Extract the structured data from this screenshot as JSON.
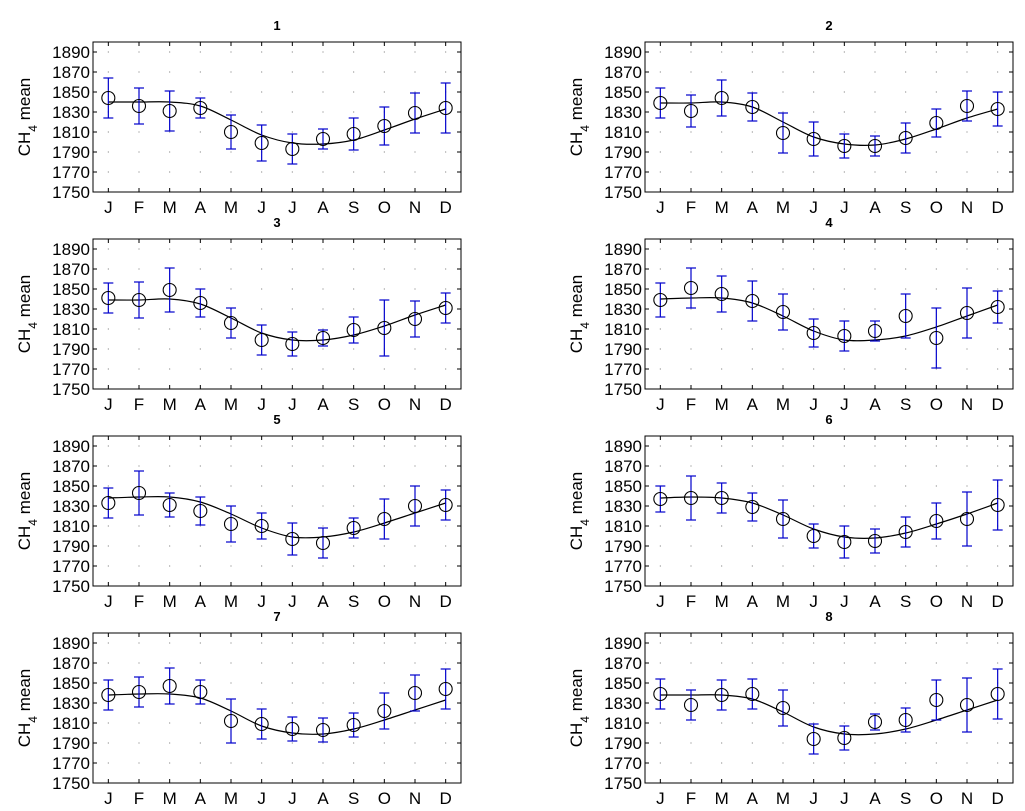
{
  "figure": {
    "ylabel_main": "CH",
    "ylabel_sub": "4",
    "ylabel_suffix": " mean"
  },
  "chart_data": [
    {
      "type": "scatter",
      "title": "1",
      "ylabel": "CH4 mean",
      "ylim": [
        1750,
        1900
      ],
      "yticks": [
        1750,
        1770,
        1790,
        1810,
        1830,
        1850,
        1870,
        1890
      ],
      "categories": [
        "J",
        "F",
        "M",
        "A",
        "M",
        "J",
        "J",
        "A",
        "S",
        "O",
        "N",
        "D"
      ],
      "series": [
        {
          "values": [
            1844,
            1836,
            1831,
            1834,
            1810,
            1799,
            1793,
            1803,
            1808,
            1816,
            1829,
            1834
          ]
        }
      ],
      "err": [
        20,
        18,
        20,
        10,
        17,
        18,
        15,
        10,
        16,
        19,
        20,
        25
      ],
      "fit": [
        1840,
        1840,
        1840,
        1836,
        1822,
        1807,
        1799,
        1798,
        1802,
        1812,
        1823,
        1833
      ]
    },
    {
      "type": "scatter",
      "title": "2",
      "ylabel": "CH4 mean",
      "ylim": [
        1750,
        1900
      ],
      "yticks": [
        1750,
        1770,
        1790,
        1810,
        1830,
        1850,
        1870,
        1890
      ],
      "categories": [
        "J",
        "F",
        "M",
        "A",
        "M",
        "J",
        "J",
        "A",
        "S",
        "O",
        "N",
        "D"
      ],
      "series": [
        {
          "values": [
            1839,
            1831,
            1844,
            1835,
            1809,
            1803,
            1796,
            1796,
            1804,
            1819,
            1836,
            1833
          ]
        }
      ],
      "err": [
        15,
        16,
        18,
        14,
        20,
        17,
        12,
        10,
        15,
        14,
        15,
        17
      ],
      "fit": [
        1839,
        1839,
        1840,
        1835,
        1820,
        1805,
        1798,
        1797,
        1803,
        1813,
        1824,
        1833
      ]
    },
    {
      "type": "scatter",
      "title": "3",
      "ylabel": "CH4 mean",
      "ylim": [
        1750,
        1900
      ],
      "yticks": [
        1750,
        1770,
        1790,
        1810,
        1830,
        1850,
        1870,
        1890
      ],
      "categories": [
        "J",
        "F",
        "M",
        "A",
        "M",
        "J",
        "J",
        "A",
        "S",
        "O",
        "N",
        "D"
      ],
      "series": [
        {
          "values": [
            1841,
            1839,
            1849,
            1836,
            1816,
            1799,
            1795,
            1801,
            1809,
            1811,
            1820,
            1831
          ]
        }
      ],
      "err": [
        15,
        18,
        22,
        14,
        15,
        15,
        12,
        8,
        13,
        28,
        18,
        15
      ],
      "fit": [
        1839,
        1839,
        1840,
        1835,
        1821,
        1806,
        1799,
        1799,
        1804,
        1813,
        1824,
        1834
      ]
    },
    {
      "type": "scatter",
      "title": "4",
      "ylabel": "CH4 mean",
      "ylim": [
        1750,
        1900
      ],
      "yticks": [
        1750,
        1770,
        1790,
        1810,
        1830,
        1850,
        1870,
        1890
      ],
      "categories": [
        "J",
        "F",
        "M",
        "A",
        "M",
        "J",
        "J",
        "A",
        "S",
        "O",
        "N",
        "D"
      ],
      "series": [
        {
          "values": [
            1839,
            1851,
            1845,
            1838,
            1827,
            1806,
            1803,
            1808,
            1823,
            1801,
            1826,
            1832
          ]
        }
      ],
      "err": [
        17,
        20,
        18,
        20,
        18,
        14,
        15,
        10,
        22,
        30,
        25,
        16
      ],
      "fit": [
        1840,
        1841,
        1841,
        1836,
        1823,
        1808,
        1799,
        1799,
        1803,
        1812,
        1823,
        1834
      ]
    },
    {
      "type": "scatter",
      "title": "5",
      "ylabel": "CH4 mean",
      "ylim": [
        1750,
        1900
      ],
      "yticks": [
        1750,
        1770,
        1790,
        1810,
        1830,
        1850,
        1870,
        1890
      ],
      "categories": [
        "J",
        "F",
        "M",
        "A",
        "M",
        "J",
        "J",
        "A",
        "S",
        "O",
        "N",
        "D"
      ],
      "series": [
        {
          "values": [
            1833,
            1843,
            1831,
            1825,
            1812,
            1810,
            1797,
            1793,
            1808,
            1817,
            1830,
            1831
          ]
        }
      ],
      "err": [
        15,
        22,
        12,
        14,
        18,
        13,
        16,
        15,
        10,
        20,
        20,
        15
      ],
      "fit": [
        1838,
        1839,
        1839,
        1834,
        1822,
        1808,
        1799,
        1799,
        1804,
        1813,
        1823,
        1833
      ]
    },
    {
      "type": "scatter",
      "title": "6",
      "ylabel": "CH4 mean",
      "ylim": [
        1750,
        1900
      ],
      "yticks": [
        1750,
        1770,
        1790,
        1810,
        1830,
        1850,
        1870,
        1890
      ],
      "categories": [
        "J",
        "F",
        "M",
        "A",
        "M",
        "J",
        "J",
        "A",
        "S",
        "O",
        "N",
        "D"
      ],
      "series": [
        {
          "values": [
            1837,
            1838,
            1838,
            1829,
            1817,
            1800,
            1794,
            1795,
            1804,
            1815,
            1817,
            1831
          ]
        }
      ],
      "err": [
        13,
        22,
        15,
        14,
        19,
        12,
        16,
        12,
        15,
        18,
        27,
        25
      ],
      "fit": [
        1838,
        1839,
        1838,
        1833,
        1821,
        1807,
        1799,
        1798,
        1803,
        1812,
        1822,
        1833
      ]
    },
    {
      "type": "scatter",
      "title": "7",
      "ylabel": "CH4 mean",
      "ylim": [
        1750,
        1900
      ],
      "yticks": [
        1750,
        1770,
        1790,
        1810,
        1830,
        1850,
        1870,
        1890
      ],
      "categories": [
        "J",
        "F",
        "M",
        "A",
        "M",
        "J",
        "J",
        "A",
        "S",
        "O",
        "N",
        "D"
      ],
      "series": [
        {
          "values": [
            1838,
            1841,
            1847,
            1841,
            1812,
            1809,
            1804,
            1803,
            1808,
            1822,
            1840,
            1844
          ]
        }
      ],
      "err": [
        15,
        15,
        18,
        12,
        22,
        15,
        12,
        12,
        12,
        18,
        18,
        20
      ],
      "fit": [
        1838,
        1839,
        1839,
        1835,
        1822,
        1807,
        1800,
        1799,
        1804,
        1813,
        1823,
        1833
      ]
    },
    {
      "type": "scatter",
      "title": "8",
      "ylabel": "CH4 mean",
      "ylim": [
        1750,
        1900
      ],
      "yticks": [
        1750,
        1770,
        1790,
        1810,
        1830,
        1850,
        1870,
        1890
      ],
      "categories": [
        "J",
        "F",
        "M",
        "A",
        "M",
        "J",
        "J",
        "A",
        "S",
        "O",
        "N",
        "D"
      ],
      "series": [
        {
          "values": [
            1839,
            1828,
            1838,
            1839,
            1825,
            1794,
            1795,
            1811,
            1813,
            1833,
            1828,
            1839
          ]
        }
      ],
      "err": [
        15,
        15,
        15,
        15,
        18,
        15,
        12,
        8,
        12,
        20,
        27,
        25
      ],
      "fit": [
        1838,
        1838,
        1838,
        1834,
        1821,
        1806,
        1799,
        1799,
        1804,
        1813,
        1823,
        1833
      ]
    }
  ]
}
